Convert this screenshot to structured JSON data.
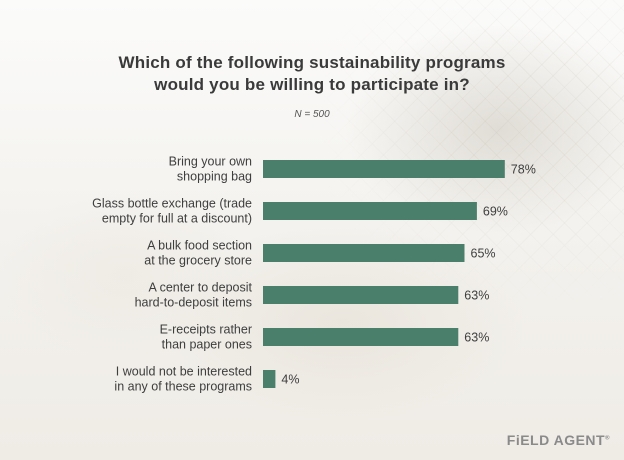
{
  "title_lines": [
    "Which of the following sustainability programs",
    "would you be willing to participate in?"
  ],
  "subtitle": "N = 500",
  "brand": "FiELD AGENT",
  "colors": {
    "bar": "#4a7f6b",
    "text": "#3e3e3e"
  },
  "chart_data": {
    "type": "bar",
    "orientation": "horizontal",
    "title": "Which of the following sustainability programs would you be willing to participate in?",
    "subtitle": "N = 500",
    "categories": [
      [
        "Bring your own",
        "shopping bag"
      ],
      [
        "Glass bottle exchange (trade",
        "empty for full at a discount)"
      ],
      [
        "A bulk food section",
        "at the grocery store"
      ],
      [
        "A center to deposit",
        "hard-to-deposit items"
      ],
      [
        "E-receipts rather",
        "than paper ones"
      ],
      [
        "I would not be interested",
        "in any of these programs"
      ]
    ],
    "values": [
      78,
      69,
      65,
      63,
      63,
      4
    ],
    "value_labels": [
      "78%",
      "69%",
      "65%",
      "63%",
      "63%",
      "4%"
    ],
    "unit": "%",
    "xlim": [
      0,
      100
    ],
    "grid": false,
    "legend": "none"
  }
}
